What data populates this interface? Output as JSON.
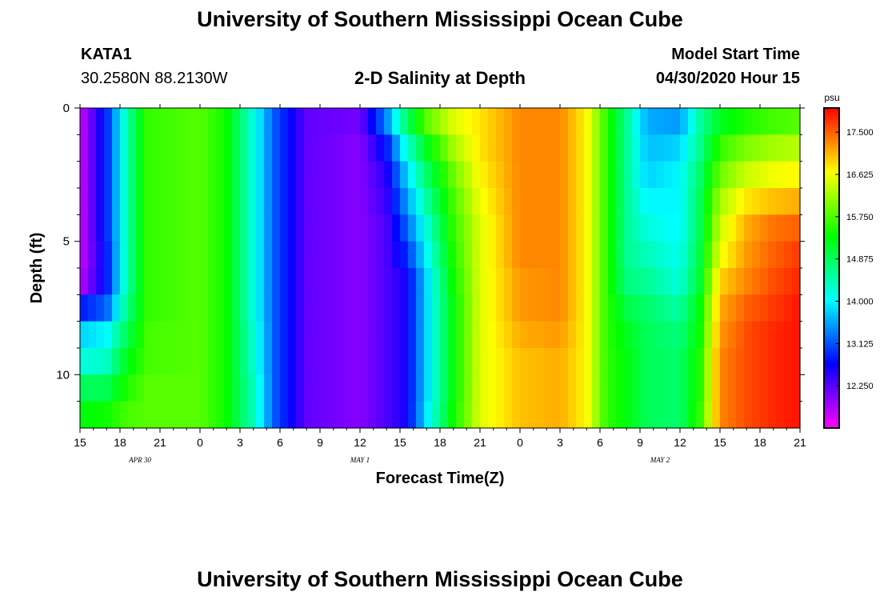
{
  "page": {
    "title_top": "University of Southern Mississippi Ocean Cube",
    "title_bottom": "University of Southern Mississippi Ocean Cube",
    "station_id": "KATA1",
    "station_coords": "30.2580N 88.2130W",
    "plot_title": "2-D Salinity at Depth",
    "model_start_label": "Model Start Time",
    "model_start_value": "04/30/2020 Hour 15"
  },
  "chart_data": {
    "type": "heatmap",
    "title": "2-D Salinity at Depth",
    "xlabel": "Forecast Time(Z)",
    "ylabel": "Depth (ft)",
    "x_ticks": [
      "15",
      "18",
      "21",
      "0",
      "3",
      "6",
      "9",
      "12",
      "15",
      "18",
      "21",
      "0",
      "3",
      "6",
      "9",
      "12",
      "15",
      "18",
      "21"
    ],
    "x_hours": [
      0,
      3,
      6,
      9,
      12,
      15,
      18,
      21,
      24,
      27,
      30,
      33,
      36,
      39,
      42,
      45,
      48,
      51,
      54
    ],
    "date_labels": [
      {
        "text": "APR 30",
        "hour": 4.5
      },
      {
        "text": "MAY 1",
        "hour": 21
      },
      {
        "text": "MAY 2",
        "hour": 43.5
      }
    ],
    "y_ticks": [
      0,
      5,
      10
    ],
    "ylim": [
      0,
      12
    ],
    "xlim": [
      0,
      54
    ],
    "colorbar": {
      "unit": "psu",
      "min": 11.375,
      "max": 18.0,
      "tick_values": [
        12.25,
        13.125,
        14.0,
        14.875,
        15.75,
        16.625,
        17.5
      ],
      "tick_labels": [
        "12.250",
        "13.125",
        "14.000",
        "14.875",
        "15.750",
        "16.625",
        "17.500"
      ]
    },
    "nodes": [
      {
        "t": 0,
        "s": [
          11.6,
          11.6,
          11.6,
          11.6,
          11.6,
          11.6,
          11.7,
          12.8,
          13.8,
          14.2,
          14.9,
          15.3
        ]
      },
      {
        "t": 2,
        "s": [
          12.9,
          12.9,
          12.9,
          12.9,
          12.9,
          12.8,
          12.8,
          13.2,
          14.0,
          14.3,
          14.9,
          15.4
        ]
      },
      {
        "t": 3.5,
        "s": [
          14.4,
          14.4,
          14.4,
          14.4,
          14.4,
          14.4,
          14.4,
          14.6,
          14.9,
          15.2,
          15.5,
          15.7
        ]
      },
      {
        "t": 5,
        "s": [
          15.6,
          15.6,
          15.6,
          15.6,
          15.6,
          15.6,
          15.6,
          15.6,
          15.7,
          15.7,
          15.8,
          15.8
        ]
      },
      {
        "t": 9,
        "s": [
          15.8,
          15.8,
          15.8,
          15.8,
          15.8,
          15.8,
          15.8,
          15.8,
          15.8,
          15.8,
          15.8,
          15.8
        ]
      },
      {
        "t": 11,
        "s": [
          15.4,
          15.4,
          15.4,
          15.4,
          15.4,
          15.4,
          15.4,
          15.4,
          15.4,
          15.4,
          15.4,
          15.4
        ]
      },
      {
        "t": 13,
        "s": [
          14.2,
          14.2,
          14.2,
          14.2,
          14.2,
          14.2,
          14.2,
          14.2,
          14.3,
          14.3,
          14.4,
          14.4
        ]
      },
      {
        "t": 14.5,
        "s": [
          13.2,
          13.2,
          13.2,
          13.2,
          13.2,
          13.2,
          13.2,
          13.2,
          13.2,
          13.2,
          13.2,
          13.2
        ]
      },
      {
        "t": 17,
        "s": [
          12.2,
          12.2,
          12.2,
          12.2,
          12.2,
          12.2,
          12.2,
          12.2,
          12.2,
          12.2,
          12.2,
          12.2
        ]
      },
      {
        "t": 21,
        "s": [
          12.1,
          12.0,
          12.0,
          12.0,
          12.0,
          12.0,
          12.0,
          12.0,
          12.0,
          12.0,
          12.0,
          12.0
        ]
      },
      {
        "t": 23,
        "s": [
          13.4,
          12.8,
          12.5,
          12.4,
          12.3,
          12.3,
          12.3,
          12.3,
          12.3,
          12.3,
          12.3,
          12.3
        ]
      },
      {
        "t": 24.5,
        "s": [
          14.8,
          14.2,
          13.8,
          13.5,
          13.2,
          12.9,
          12.6,
          12.6,
          12.6,
          12.6,
          12.6,
          12.6
        ]
      },
      {
        "t": 26,
        "s": [
          15.8,
          15.2,
          14.8,
          14.5,
          14.2,
          14.0,
          13.8,
          13.8,
          13.8,
          13.8,
          13.8,
          13.9
        ]
      },
      {
        "t": 28,
        "s": [
          16.5,
          16.2,
          15.9,
          15.7,
          15.6,
          15.5,
          15.4,
          15.3,
          15.3,
          15.3,
          15.3,
          15.4
        ]
      },
      {
        "t": 30,
        "s": [
          16.8,
          16.8,
          16.7,
          16.6,
          16.5,
          16.5,
          16.5,
          16.5,
          16.5,
          16.5,
          16.5,
          16.5
        ]
      },
      {
        "t": 33,
        "s": [
          17.3,
          17.3,
          17.3,
          17.3,
          17.3,
          17.3,
          17.2,
          17.2,
          17.1,
          17.0,
          17.0,
          17.0
        ]
      },
      {
        "t": 36,
        "s": [
          17.3,
          17.3,
          17.3,
          17.3,
          17.3,
          17.3,
          17.3,
          17.3,
          17.2,
          17.1,
          17.1,
          17.1
        ]
      },
      {
        "t": 38,
        "s": [
          16.7,
          16.7,
          16.7,
          16.7,
          16.7,
          16.7,
          16.7,
          16.7,
          16.7,
          16.7,
          16.7,
          16.7
        ]
      },
      {
        "t": 39.5,
        "s": [
          15.6,
          15.6,
          15.6,
          15.6,
          15.6,
          15.6,
          15.6,
          15.6,
          15.6,
          15.6,
          15.6,
          15.6
        ]
      },
      {
        "t": 41,
        "s": [
          14.6,
          14.6,
          14.6,
          14.6,
          14.6,
          14.6,
          14.7,
          15.0,
          15.2,
          15.3,
          15.3,
          15.3
        ]
      },
      {
        "t": 42.5,
        "s": [
          13.6,
          13.7,
          13.8,
          14.0,
          14.2,
          14.4,
          14.6,
          14.8,
          14.9,
          14.9,
          14.9,
          14.9
        ]
      },
      {
        "t": 45,
        "s": [
          13.5,
          13.8,
          14.0,
          14.0,
          14.0,
          14.1,
          14.2,
          14.5,
          14.7,
          14.8,
          14.8,
          14.8
        ]
      },
      {
        "t": 46.5,
        "s": [
          14.5,
          14.6,
          14.8,
          14.9,
          14.9,
          15.0,
          15.1,
          15.3,
          15.4,
          15.5,
          15.5,
          15.6
        ]
      },
      {
        "t": 48,
        "s": [
          15.2,
          15.6,
          15.9,
          16.2,
          16.4,
          16.6,
          16.9,
          17.1,
          17.2,
          17.3,
          17.3,
          17.3
        ]
      },
      {
        "t": 50,
        "s": [
          15.5,
          16.0,
          16.4,
          16.8,
          17.1,
          17.2,
          17.3,
          17.5,
          17.6,
          17.6,
          17.6,
          17.6
        ]
      },
      {
        "t": 52,
        "s": [
          15.7,
          16.2,
          16.6,
          17.0,
          17.4,
          17.5,
          17.6,
          17.7,
          17.8,
          17.8,
          17.8,
          17.8
        ]
      },
      {
        "t": 54,
        "s": [
          15.8,
          16.3,
          16.7,
          17.1,
          17.5,
          17.7,
          17.8,
          17.9,
          17.9,
          17.9,
          17.9,
          17.9
        ]
      }
    ]
  }
}
